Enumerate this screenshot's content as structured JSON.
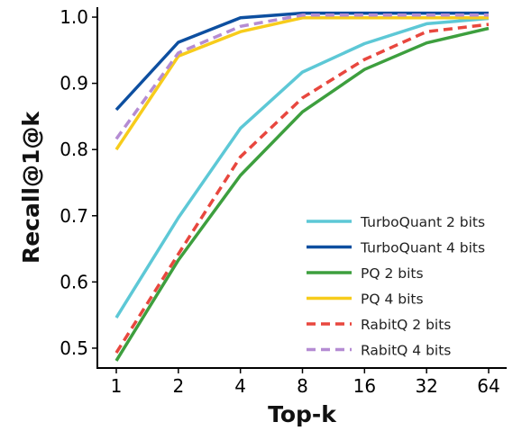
{
  "chart_data": {
    "type": "line",
    "title": "",
    "xlabel": "Top-k",
    "ylabel": "Recall@1@k",
    "categories": [
      "1",
      "2",
      "4",
      "8",
      "16",
      "32",
      "64"
    ],
    "ylim": [
      0.47,
      1.015
    ],
    "yticks": [
      "0.5",
      "0.6",
      "0.7",
      "0.8",
      "0.9",
      "1.0"
    ],
    "grid": false,
    "legend_position": "bottom-right",
    "series": [
      {
        "name": "TurboQuant 2 bits",
        "color": "#5DC8D6",
        "dash": "solid",
        "values": [
          0.546,
          0.697,
          0.832,
          0.917,
          0.96,
          0.99,
          0.998
        ]
      },
      {
        "name": "TurboQuant 4 bits",
        "color": "#0D4FA0",
        "dash": "solid",
        "values": [
          0.86,
          0.962,
          0.999,
          1.006,
          1.006,
          1.006,
          1.006
        ]
      },
      {
        "name": "PQ 2 bits",
        "color": "#3D9F3E",
        "dash": "solid",
        "values": [
          0.481,
          0.633,
          0.761,
          0.857,
          0.921,
          0.961,
          0.983
        ]
      },
      {
        "name": "PQ 4 bits",
        "color": "#F7CC1B",
        "dash": "solid",
        "values": [
          0.8,
          0.941,
          0.978,
          0.999,
          0.999,
          0.999,
          0.999
        ]
      },
      {
        "name": "RabitQ 2 bits",
        "color": "#E8473E",
        "dash": "dashed",
        "values": [
          0.493,
          0.642,
          0.789,
          0.878,
          0.936,
          0.978,
          0.989
        ]
      },
      {
        "name": "RabitQ 4 bits",
        "color": "#B58CD3",
        "dash": "dashed",
        "values": [
          0.816,
          0.946,
          0.986,
          1.003,
          1.003,
          1.003,
          1.003
        ]
      }
    ]
  }
}
